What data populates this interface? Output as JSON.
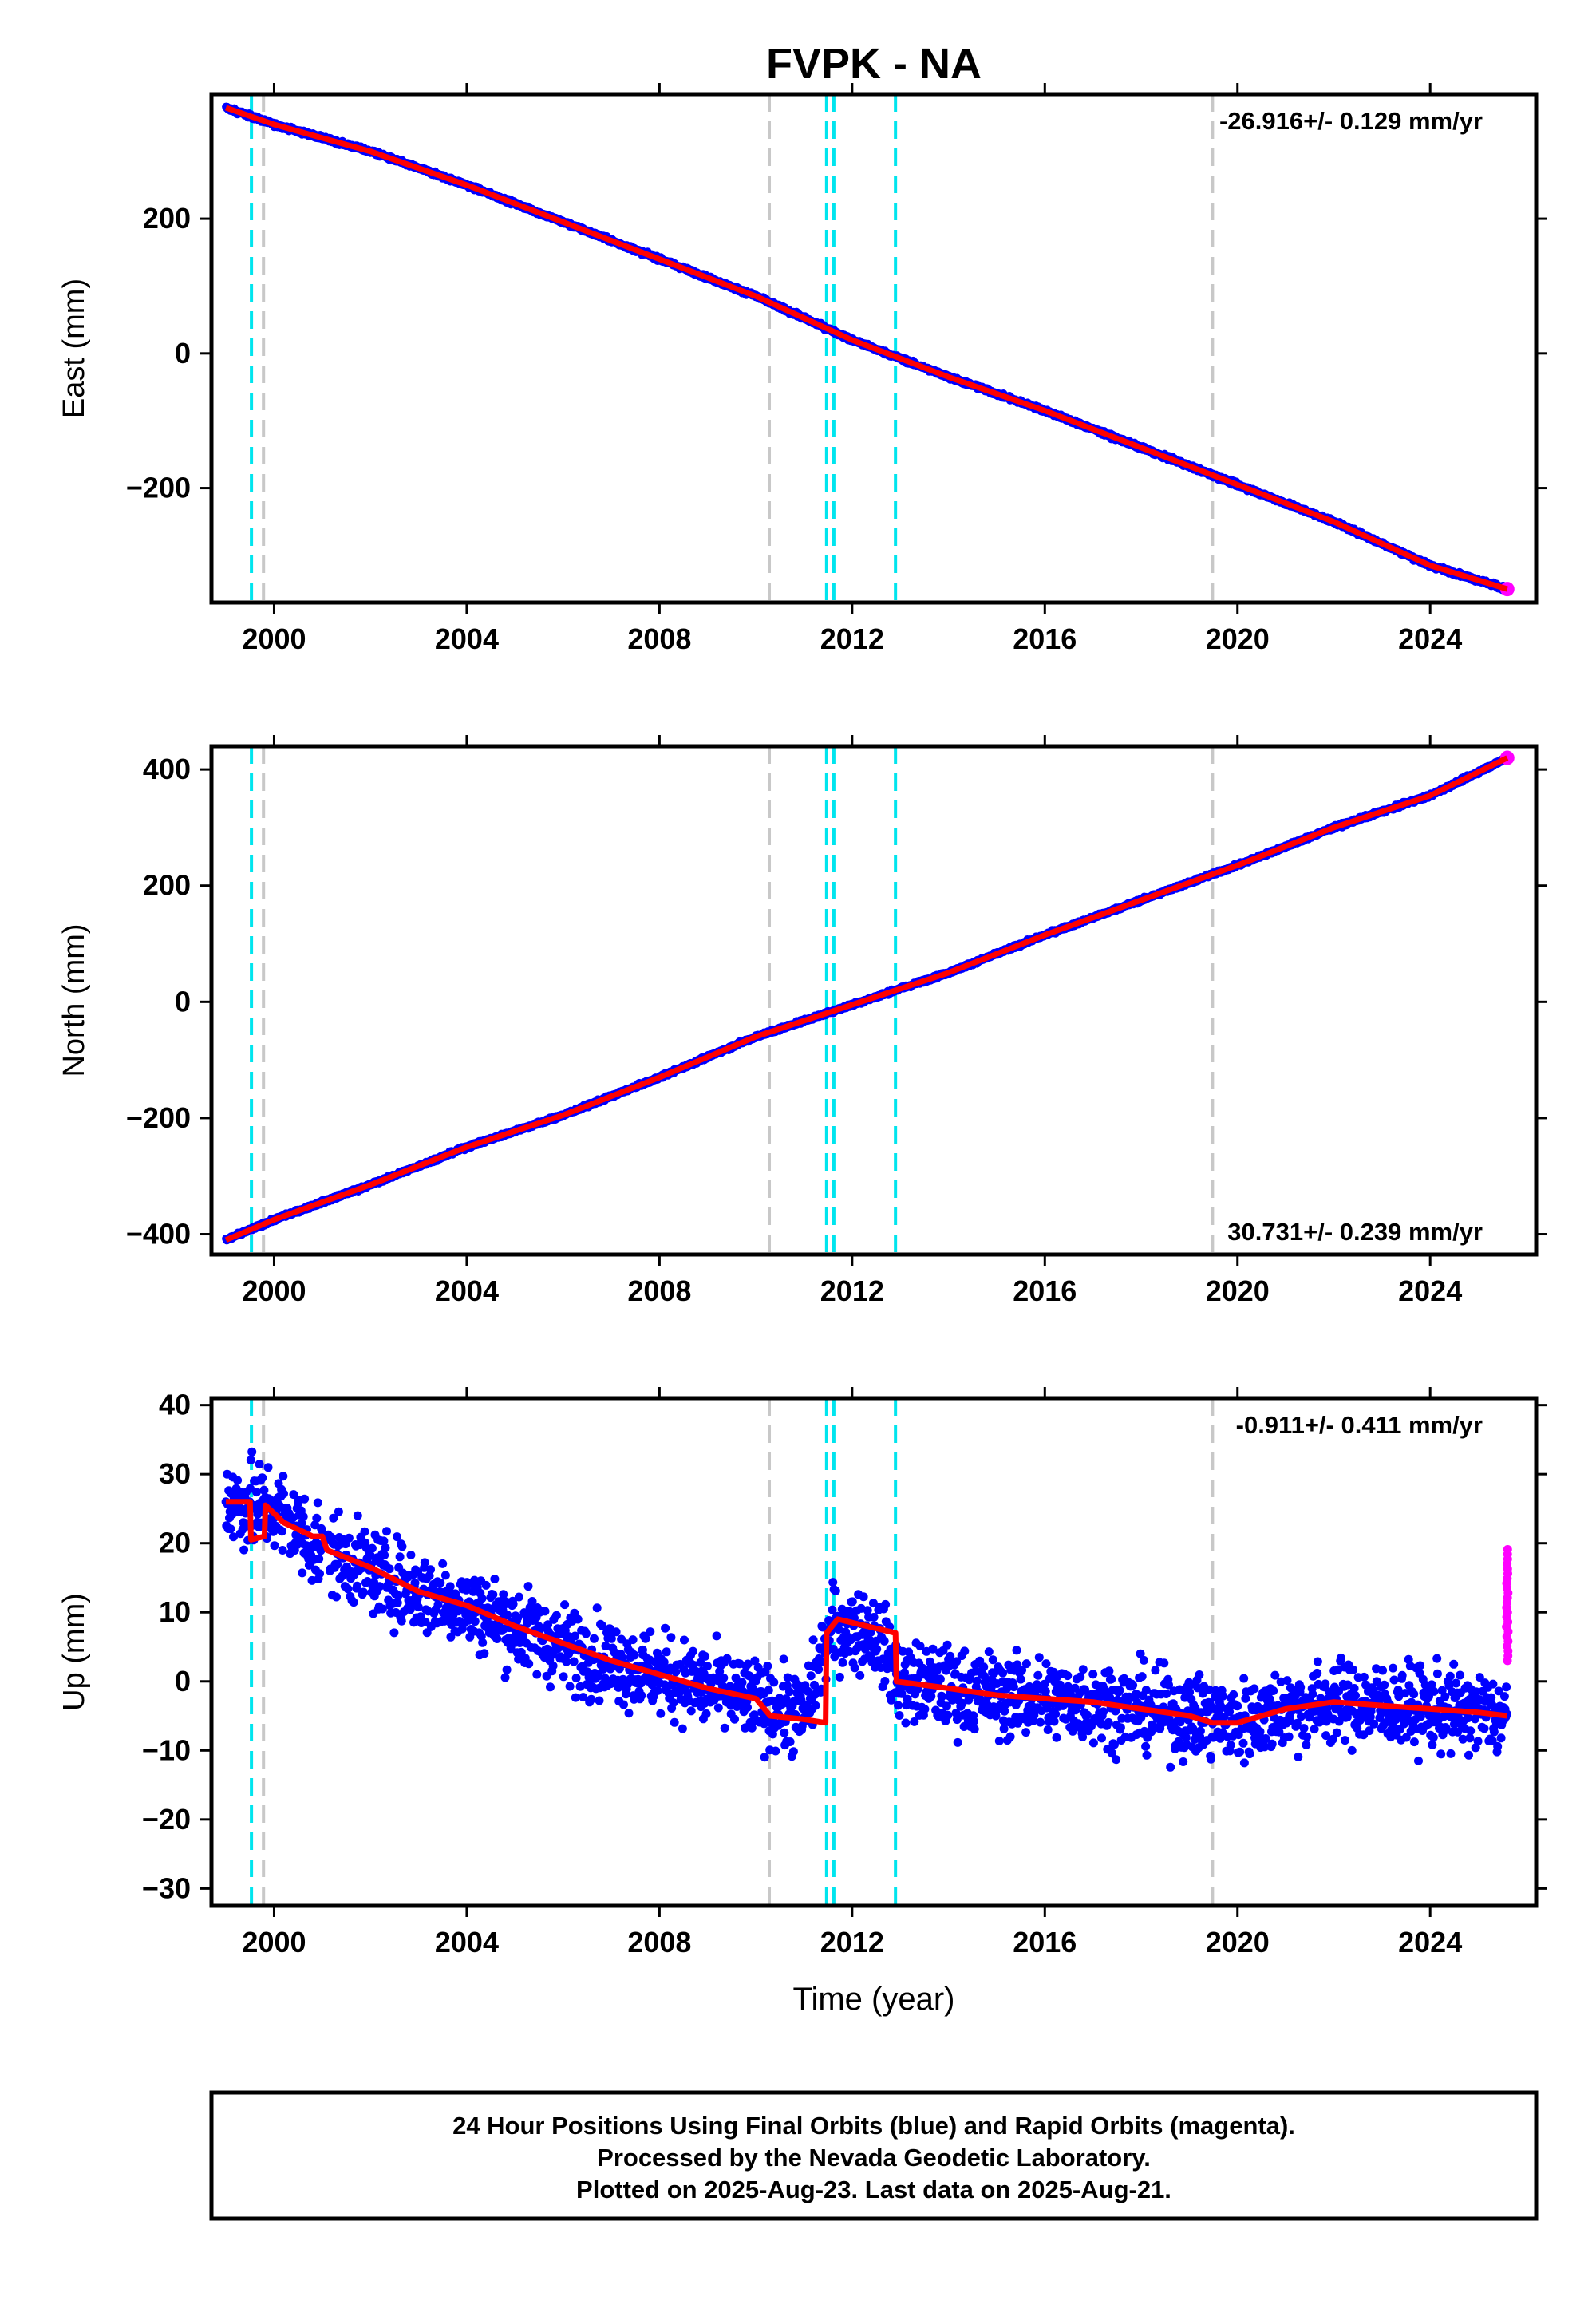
{
  "title": "FVPK - NA",
  "xlabel": "Time (year)",
  "caption": [
    "24 Hour Positions Using Final Orbits (blue) and Rapid Orbits (magenta).",
    "Processed by the Nevada Geodetic Laboratory.",
    "Plotted on 2025-Aug-23. Last data on 2025-Aug-21."
  ],
  "colors": {
    "final_orbits": "#0000ff",
    "rapid_orbits": "#ff00ff",
    "model": "#ff0000",
    "equipment_change": "#00e5ee",
    "other_event": "#c8c8c8"
  },
  "chart_data": [
    {
      "type": "scatter",
      "name": "East",
      "ylabel": "East (mm)",
      "rate_label": "-26.916+/- 0.129 mm/yr",
      "xlim": [
        1998.7,
        2026.2
      ],
      "ylim": [
        -370,
        385
      ],
      "xticks": [
        2000,
        2004,
        2008,
        2012,
        2016,
        2020,
        2024
      ],
      "yticks": [
        -200,
        0,
        200
      ],
      "series": [
        {
          "name": "final",
          "x": [
            1999.0,
            2000.0,
            2002.0,
            2004.0,
            2006.0,
            2008.0,
            2010.0,
            2012.0,
            2014.0,
            2016.0,
            2018.0,
            2020.0,
            2022.0,
            2024.0,
            2025.6
          ],
          "y": [
            365,
            340,
            300,
            250,
            195,
            140,
            85,
            20,
            -35,
            -85,
            -140,
            -195,
            -250,
            -315,
            -350
          ]
        },
        {
          "name": "rapid",
          "x": [
            2025.6
          ],
          "y": [
            -350
          ]
        }
      ],
      "vlines": {
        "equipment_change": [
          1999.53,
          2011.47,
          2011.62,
          2012.9
        ],
        "other_event": [
          1999.78,
          2010.28,
          2019.48
        ]
      }
    },
    {
      "type": "scatter",
      "name": "North",
      "ylabel": "North (mm)",
      "rate_label": "30.731+/- 0.239 mm/yr",
      "xlim": [
        1998.7,
        2026.2
      ],
      "ylim": [
        -435,
        440
      ],
      "xticks": [
        2000,
        2004,
        2008,
        2012,
        2016,
        2020,
        2024
      ],
      "yticks": [
        -400,
        -200,
        0,
        200,
        400
      ],
      "series": [
        {
          "name": "final",
          "x": [
            1999.0,
            2000.0,
            2002.0,
            2004.0,
            2006.0,
            2008.0,
            2010.0,
            2012.0,
            2014.0,
            2016.0,
            2018.0,
            2020.0,
            2022.0,
            2024.0,
            2025.6
          ],
          "y": [
            -410,
            -375,
            -315,
            -250,
            -195,
            -130,
            -60,
            -5,
            50,
            115,
            175,
            235,
            300,
            355,
            420
          ]
        },
        {
          "name": "rapid",
          "x": [
            2025.6
          ],
          "y": [
            420
          ]
        }
      ],
      "vlines": {
        "equipment_change": [
          1999.53,
          2011.47,
          2011.62,
          2012.9
        ],
        "other_event": [
          1999.78,
          2010.28,
          2019.48
        ]
      }
    },
    {
      "type": "scatter",
      "name": "Up",
      "ylabel": "Up (mm)",
      "rate_label": "-0.911+/- 0.411 mm/yr",
      "xlim": [
        1998.7,
        2026.2
      ],
      "ylim": [
        -32.5,
        41
      ],
      "xticks": [
        2000,
        2004,
        2008,
        2012,
        2016,
        2020,
        2024
      ],
      "yticks": [
        -30,
        -20,
        -10,
        0,
        10,
        20,
        30,
        40
      ],
      "model": {
        "x": [
          1999.0,
          1999.5,
          1999.52,
          1999.8,
          1999.82,
          2000.2,
          2000.5,
          2000.8,
          2001.0,
          2001.1,
          2002.0,
          2003.0,
          2004.0,
          2005.0,
          2006.0,
          2007.0,
          2008.0,
          2009.0,
          2010.0,
          2010.3,
          2011.0,
          2011.45,
          2011.47,
          2011.7,
          2012.9,
          2012.92,
          2014.0,
          2015.0,
          2016.0,
          2017.0,
          2018.0,
          2019.0,
          2019.48,
          2020.0,
          2021.0,
          2022.0,
          2023.0,
          2024.0,
          2025.0,
          2025.6
        ],
        "y": [
          26,
          26,
          20.5,
          21,
          25.5,
          23,
          22,
          21,
          21,
          19,
          16.5,
          13,
          11,
          8,
          5.5,
          3,
          1,
          -1,
          -2.5,
          -5,
          -5.5,
          -6,
          7,
          9,
          7,
          0,
          -1,
          -2,
          -2.5,
          -3,
          -4,
          -5,
          -6,
          -6,
          -4,
          -3,
          -3.5,
          -4,
          -4.5,
          -5
        ]
      },
      "series": [
        {
          "name": "final",
          "x": [
            1999.0,
            2000.0,
            2001.0,
            2002.0,
            2003.0,
            2004.0,
            2005.0,
            2006.0,
            2007.0,
            2008.0,
            2009.0,
            2010.0,
            2011.0,
            2011.6,
            2012.5,
            2013.0,
            2014.0,
            2015.0,
            2016.0,
            2017.0,
            2018.0,
            2019.0,
            2020.0,
            2021.0,
            2022.0,
            2023.0,
            2024.0,
            2025.0,
            2025.6
          ],
          "y": [
            26,
            25,
            19,
            16,
            13,
            11,
            8,
            5,
            3,
            1,
            -1,
            -3,
            -5,
            8,
            7,
            0,
            -1,
            -2,
            -2.5,
            -3,
            -4,
            -5,
            -6,
            -4,
            -3,
            -3.5,
            -4,
            -4.5,
            -5
          ]
        },
        {
          "name": "rapid",
          "x": [
            2025.55,
            2025.6,
            2025.65
          ],
          "y": [
            19.5,
            8,
            3
          ]
        }
      ],
      "vlines": {
        "equipment_change": [
          1999.53,
          2011.47,
          2011.62,
          2012.9
        ],
        "other_event": [
          1999.78,
          2010.28,
          2019.48
        ]
      }
    }
  ]
}
